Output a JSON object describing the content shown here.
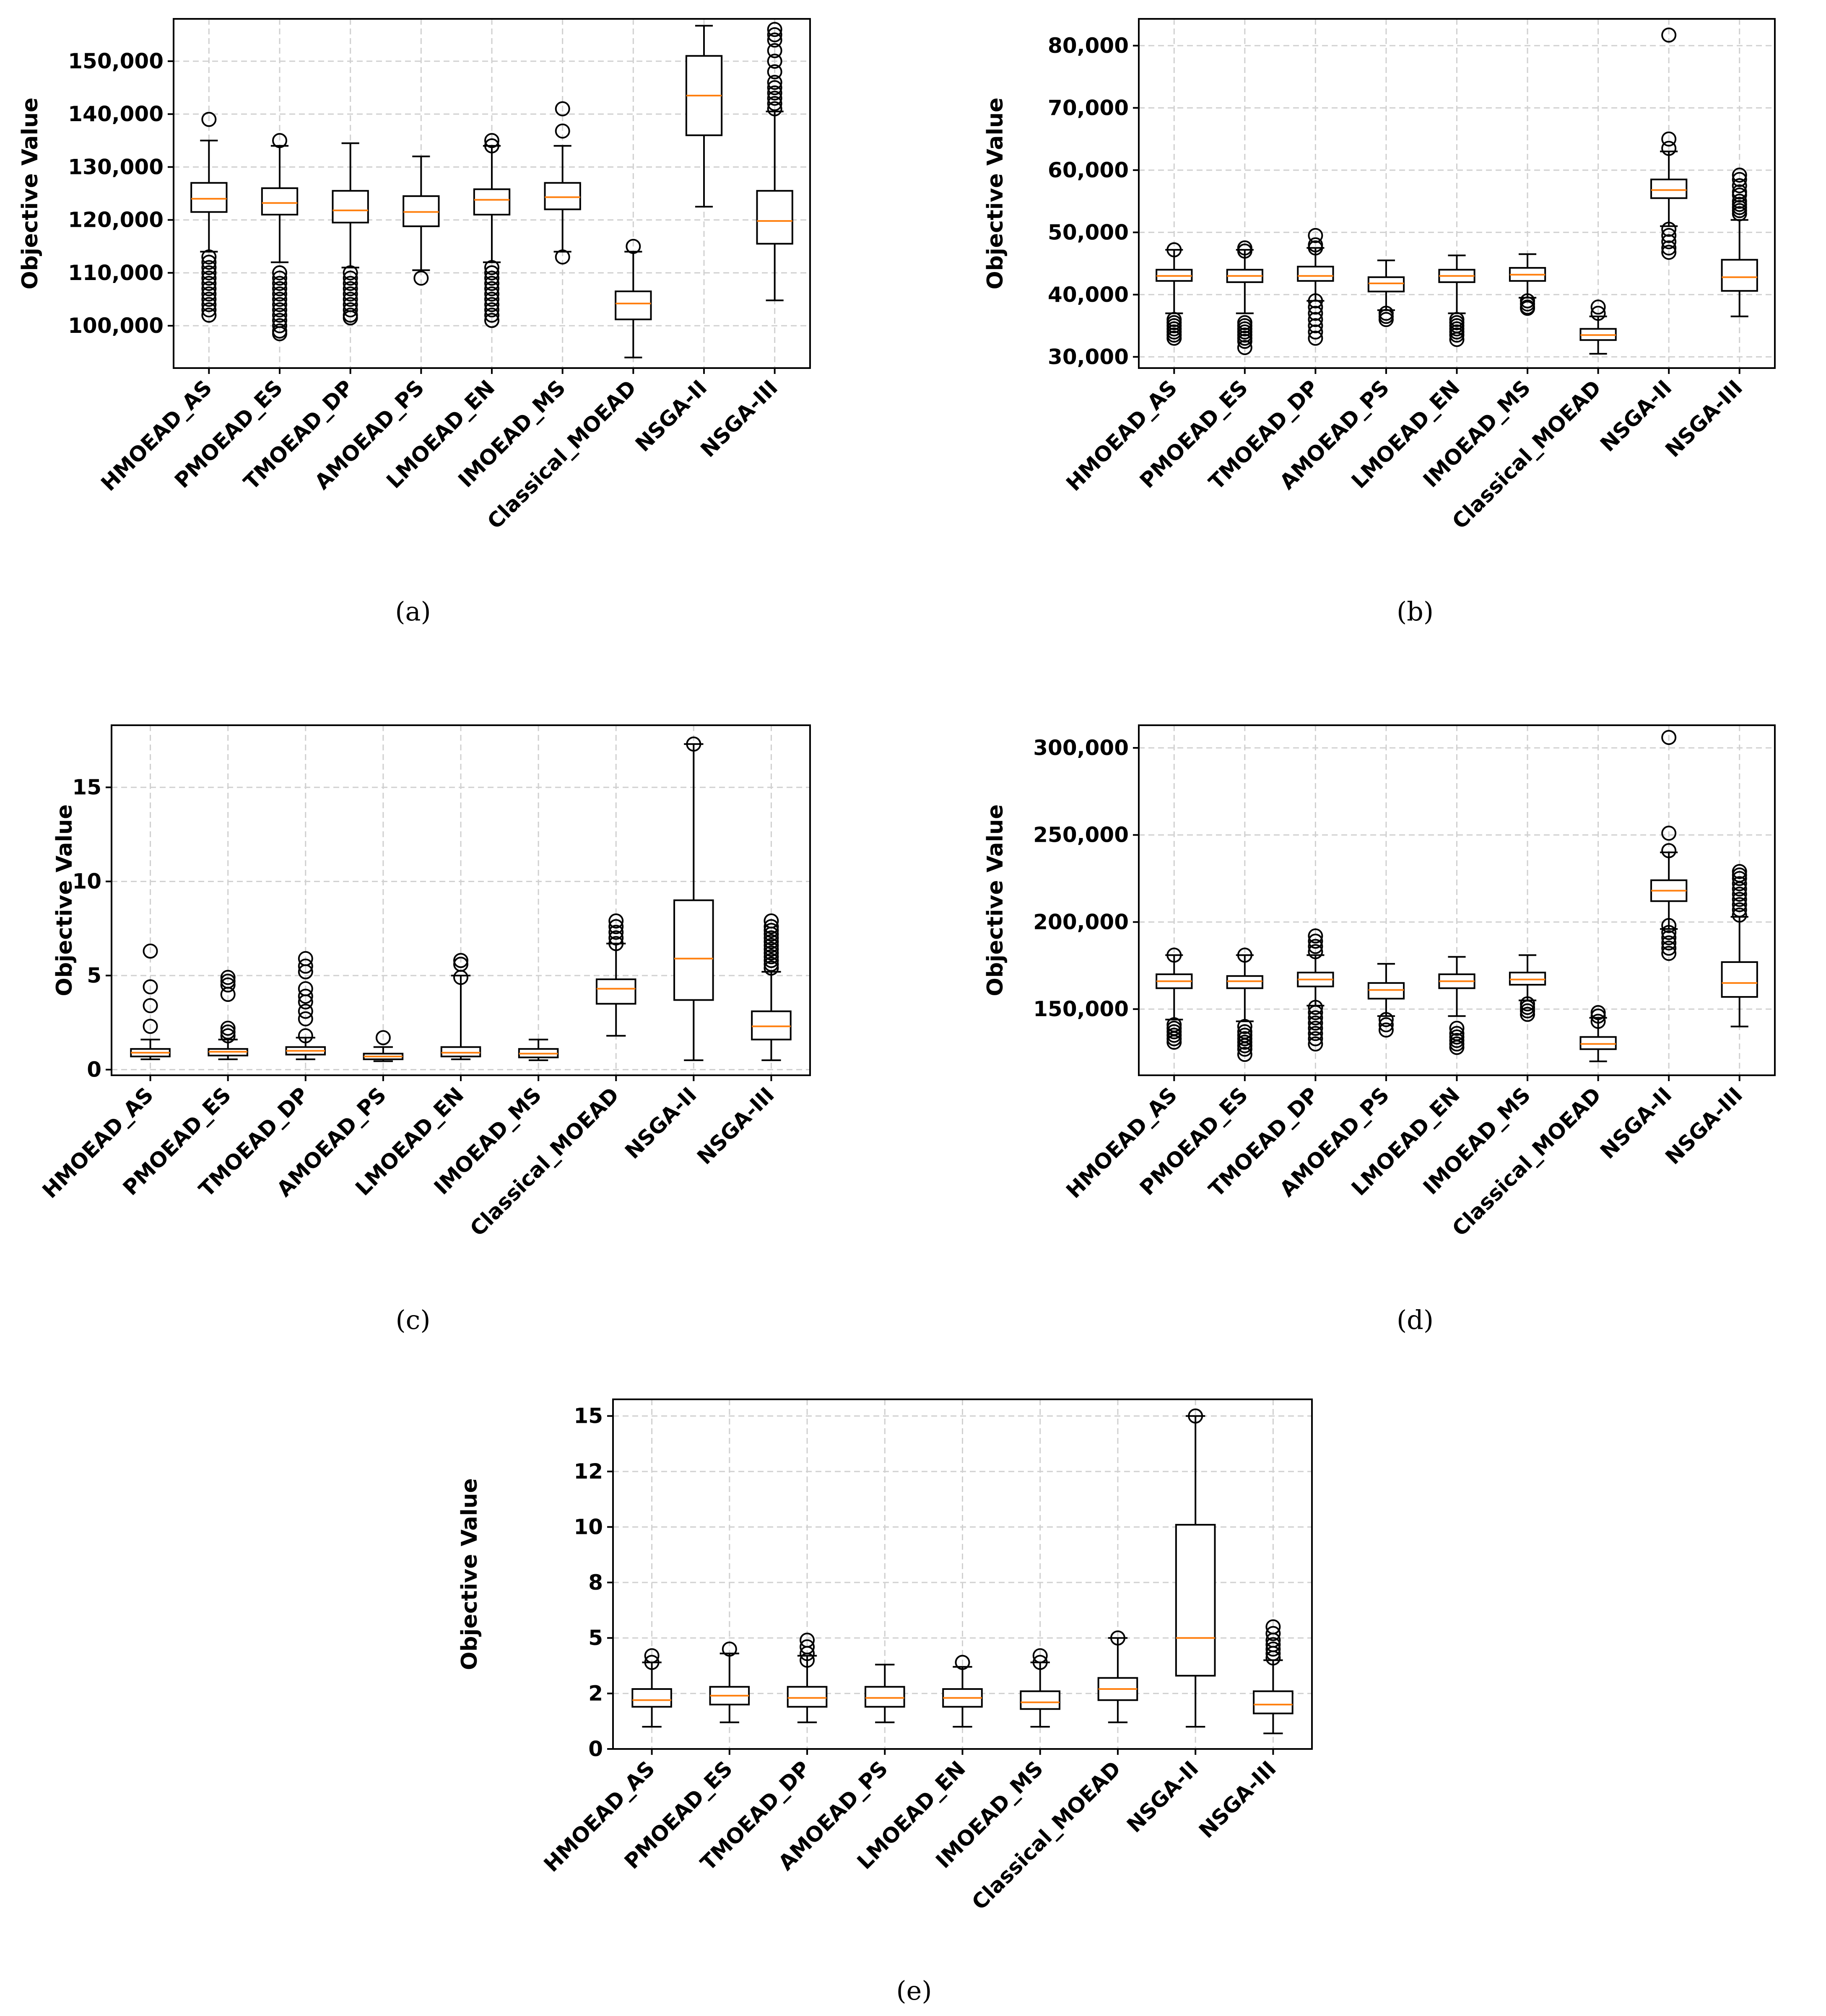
{
  "figure": {
    "panels": [
      {
        "caption": "(a)"
      },
      {
        "caption": "(b)"
      },
      {
        "caption": "(c)"
      },
      {
        "caption": "(d)"
      },
      {
        "caption": "(e)"
      }
    ]
  },
  "chart_data": [
    {
      "type": "box",
      "panel": "(a)",
      "title": "",
      "ylabel": "Objective Value",
      "xlabel": "",
      "grid": true,
      "ylim": [
        92000,
        158000
      ],
      "yticks": [
        100000,
        110000,
        120000,
        130000,
        140000,
        150000
      ],
      "ytick_labels": [
        "100,000",
        "110,000",
        "120,000",
        "130,000",
        "140,000",
        "150,000"
      ],
      "categories": [
        "HMOEAD_AS",
        "PMOEAD_ES",
        "TMOEAD_DP",
        "AMOEAD_PS",
        "LMOEAD_EN",
        "IMOEAD_MS",
        "Classical_MOEAD",
        "NSGA-II",
        "NSGA-III"
      ],
      "boxes": [
        {
          "whislo": 114000,
          "q1": 121500,
          "med": 124000,
          "q3": 127000,
          "whishi": 135000,
          "fliers": [
            139000,
            113000,
            112000,
            111000,
            110000,
            109000,
            108000,
            107000,
            106000,
            105000,
            104000,
            103000,
            102000
          ]
        },
        {
          "whislo": 112000,
          "q1": 121000,
          "med": 123200,
          "q3": 126000,
          "whishi": 134000,
          "fliers": [
            135000,
            110000,
            109000,
            108000,
            107000,
            106000,
            105000,
            104000,
            103000,
            102000,
            101000,
            100000,
            99000,
            98500
          ]
        },
        {
          "whislo": 111000,
          "q1": 119500,
          "med": 121800,
          "q3": 125500,
          "whishi": 134500,
          "fliers": [
            110000,
            109000,
            108000,
            107000,
            106000,
            105000,
            104000,
            103000,
            102000,
            101500
          ]
        },
        {
          "whislo": 110500,
          "q1": 118800,
          "med": 121500,
          "q3": 124500,
          "whishi": 132000,
          "fliers": [
            109000
          ]
        },
        {
          "whislo": 112000,
          "q1": 121000,
          "med": 123800,
          "q3": 125800,
          "whishi": 134000,
          "fliers": [
            135000,
            134000,
            111000,
            110000,
            109000,
            108000,
            107000,
            106000,
            105000,
            104000,
            103000,
            102000,
            101000
          ]
        },
        {
          "whislo": 114000,
          "q1": 122000,
          "med": 124300,
          "q3": 127000,
          "whishi": 134000,
          "fliers": [
            141000,
            136800,
            113000
          ]
        },
        {
          "whislo": 94000,
          "q1": 101200,
          "med": 104200,
          "q3": 106500,
          "whishi": 114000,
          "fliers": [
            115000
          ]
        },
        {
          "whislo": 122500,
          "q1": 136000,
          "med": 143500,
          "q3": 151000,
          "whishi": 156700,
          "fliers": []
        },
        {
          "whislo": 104800,
          "q1": 115500,
          "med": 119800,
          "q3": 125500,
          "whishi": 140500,
          "fliers": [
            156000,
            155000,
            154000,
            152000,
            150000,
            148000,
            146000,
            145000,
            144000,
            143000,
            142000,
            141000
          ]
        }
      ]
    },
    {
      "type": "box",
      "panel": "(b)",
      "title": "",
      "ylabel": "Objective Value",
      "xlabel": "",
      "grid": true,
      "ylim": [
        28200,
        84300
      ],
      "yticks": [
        30000,
        40000,
        50000,
        60000,
        70000,
        80000
      ],
      "ytick_labels": [
        "30,000",
        "40,000",
        "50,000",
        "60,000",
        "70,000",
        "80,000"
      ],
      "categories": [
        "HMOEAD_AS",
        "PMOEAD_ES",
        "TMOEAD_DP",
        "AMOEAD_PS",
        "LMOEAD_EN",
        "IMOEAD_MS",
        "Classical_MOEAD",
        "NSGA-II",
        "NSGA-III"
      ],
      "boxes": [
        {
          "whislo": 37000,
          "q1": 42200,
          "med": 43000,
          "q3": 44000,
          "whishi": 47200,
          "fliers": [
            47200,
            36000,
            35500,
            35000,
            34500,
            34000,
            33500,
            33000
          ]
        },
        {
          "whislo": 37000,
          "q1": 42000,
          "med": 43000,
          "q3": 44000,
          "whishi": 47200,
          "fliers": [
            47500,
            47000,
            35500,
            35000,
            34500,
            34000,
            33500,
            33000,
            32500,
            31500
          ]
        },
        {
          "whislo": 39000,
          "q1": 42200,
          "med": 43000,
          "q3": 44500,
          "whishi": 47500,
          "fliers": [
            49500,
            48000,
            47500,
            39000,
            38000,
            37000,
            36000,
            35000,
            34000,
            33000
          ]
        },
        {
          "whislo": 37500,
          "q1": 40500,
          "med": 41800,
          "q3": 42800,
          "whishi": 45500,
          "fliers": [
            37000,
            36500,
            36000
          ]
        },
        {
          "whislo": 37000,
          "q1": 42000,
          "med": 43000,
          "q3": 44000,
          "whishi": 46300,
          "fliers": [
            36000,
            35500,
            35000,
            34500,
            34000,
            33500,
            32800
          ]
        },
        {
          "whislo": 39500,
          "q1": 42200,
          "med": 43200,
          "q3": 44300,
          "whishi": 46500,
          "fliers": [
            39000,
            38500,
            38000,
            37800
          ]
        },
        {
          "whislo": 30500,
          "q1": 32700,
          "med": 33500,
          "q3": 34500,
          "whishi": 36500,
          "fliers": [
            38000,
            37000
          ]
        },
        {
          "whislo": 51000,
          "q1": 55500,
          "med": 56800,
          "q3": 58500,
          "whishi": 63000,
          "fliers": [
            81700,
            65000,
            63500,
            50500,
            49500,
            48500,
            47500,
            46800
          ]
        },
        {
          "whislo": 36500,
          "q1": 40600,
          "med": 42800,
          "q3": 45600,
          "whishi": 52000,
          "fliers": [
            59200,
            58500,
            57500,
            56500,
            56000,
            55000,
            54500,
            54000,
            53500,
            53000
          ]
        }
      ]
    },
    {
      "type": "box",
      "panel": "(c)",
      "title": "",
      "ylabel": "Objective Value",
      "xlabel": "",
      "grid": true,
      "ylim": [
        -0.3,
        18.3
      ],
      "yticks": [
        0,
        5,
        10,
        15
      ],
      "ytick_labels": [
        "0",
        "5",
        "10",
        "15"
      ],
      "categories": [
        "HMOEAD_AS",
        "PMOEAD_ES",
        "TMOEAD_DP",
        "AMOEAD_PS",
        "LMOEAD_EN",
        "IMOEAD_MS",
        "Classical_MOEAD",
        "NSGA-II",
        "NSGA-III"
      ],
      "boxes": [
        {
          "whislo": 0.55,
          "q1": 0.7,
          "med": 0.9,
          "q3": 1.1,
          "whishi": 1.6,
          "fliers": [
            6.3,
            4.4,
            3.4,
            2.3
          ]
        },
        {
          "whislo": 0.55,
          "q1": 0.75,
          "med": 0.95,
          "q3": 1.1,
          "whishi": 1.6,
          "fliers": [
            4.9,
            4.7,
            4.5,
            4.0,
            2.2,
            2.0,
            1.8
          ]
        },
        {
          "whislo": 0.55,
          "q1": 0.8,
          "med": 1.0,
          "q3": 1.2,
          "whishi": 1.7,
          "fliers": [
            5.9,
            5.5,
            5.2,
            4.3,
            3.9,
            3.6,
            3.1,
            2.7,
            1.8
          ]
        },
        {
          "whislo": 0.45,
          "q1": 0.55,
          "med": 0.7,
          "q3": 0.85,
          "whishi": 1.2,
          "fliers": [
            1.7
          ]
        },
        {
          "whislo": 0.55,
          "q1": 0.7,
          "med": 0.9,
          "q3": 1.2,
          "whishi": 5.0,
          "fliers": [
            5.8,
            5.6,
            4.9
          ]
        },
        {
          "whislo": 0.5,
          "q1": 0.65,
          "med": 0.85,
          "q3": 1.1,
          "whishi": 1.6,
          "fliers": []
        },
        {
          "whislo": 1.8,
          "q1": 3.5,
          "med": 4.3,
          "q3": 4.8,
          "whishi": 6.7,
          "fliers": [
            7.9,
            7.6,
            7.3,
            7.0,
            6.7
          ]
        },
        {
          "whislo": 0.5,
          "q1": 3.7,
          "med": 5.9,
          "q3": 9.0,
          "whishi": 17.3,
          "fliers": [
            17.3
          ]
        },
        {
          "whislo": 0.5,
          "q1": 1.6,
          "med": 2.3,
          "q3": 3.1,
          "whishi": 5.2,
          "fliers": [
            7.9,
            7.6,
            7.4,
            7.2,
            7.0,
            6.8,
            6.6,
            6.4,
            6.2,
            6.0,
            5.8,
            5.6,
            5.4
          ]
        }
      ]
    },
    {
      "type": "box",
      "panel": "(d)",
      "title": "",
      "ylabel": "Objective Value",
      "xlabel": "",
      "grid": true,
      "ylim": [
        112000,
        313000
      ],
      "yticks": [
        150000,
        200000,
        250000,
        300000
      ],
      "ytick_labels": [
        "150,000",
        "200,000",
        "250,000",
        "300,000"
      ],
      "categories": [
        "HMOEAD_AS",
        "PMOEAD_ES",
        "TMOEAD_DP",
        "AMOEAD_PS",
        "LMOEAD_EN",
        "IMOEAD_MS",
        "Classical_MOEAD",
        "NSGA-II",
        "NSGA-III"
      ],
      "boxes": [
        {
          "whislo": 144000,
          "q1": 162000,
          "med": 166000,
          "q3": 170000,
          "whishi": 181000,
          "fliers": [
            181000,
            141000,
            139000,
            137000,
            135000,
            133000,
            131000
          ]
        },
        {
          "whislo": 143000,
          "q1": 162000,
          "med": 166000,
          "q3": 169000,
          "whishi": 181000,
          "fliers": [
            181000,
            140000,
            137000,
            135000,
            133000,
            131000,
            129000,
            127000,
            124000
          ]
        },
        {
          "whislo": 152000,
          "q1": 163000,
          "med": 167000,
          "q3": 171000,
          "whishi": 181000,
          "fliers": [
            192000,
            189000,
            186000,
            183000,
            151000,
            148000,
            145000,
            142000,
            139000,
            136000,
            133000,
            130000
          ]
        },
        {
          "whislo": 146000,
          "q1": 156000,
          "med": 161000,
          "q3": 165000,
          "whishi": 176000,
          "fliers": [
            144000,
            141000,
            138000
          ]
        },
        {
          "whislo": 146000,
          "q1": 162000,
          "med": 166000,
          "q3": 170000,
          "whishi": 180000,
          "fliers": [
            139000,
            136000,
            134000,
            132000,
            130000,
            128000
          ]
        },
        {
          "whislo": 155000,
          "q1": 164000,
          "med": 167000,
          "q3": 171000,
          "whishi": 181000,
          "fliers": [
            153000,
            151000,
            149000,
            147000
          ]
        },
        {
          "whislo": 120000,
          "q1": 127000,
          "med": 130000,
          "q3": 134000,
          "whishi": 145000,
          "fliers": [
            148000,
            146000,
            143000
          ]
        },
        {
          "whislo": 196000,
          "q1": 212000,
          "med": 218000,
          "q3": 224000,
          "whishi": 240000,
          "fliers": [
            306000,
            251000,
            241000,
            198000,
            194000,
            191000,
            188000,
            185000,
            182000
          ]
        },
        {
          "whislo": 140000,
          "q1": 157000,
          "med": 165000,
          "q3": 177000,
          "whishi": 203000,
          "fliers": [
            229000,
            227000,
            225000,
            222000,
            219000,
            216000,
            213000,
            210000,
            207000,
            204000
          ]
        }
      ]
    },
    {
      "type": "box",
      "panel": "(e)",
      "title": "",
      "ylabel": "Objective Value",
      "xlabel": "",
      "grid": true,
      "ylim": [
        0,
        15.75
      ],
      "yticks": [
        0,
        2.5,
        5,
        7.5,
        10,
        12.5,
        15
      ],
      "ytick_labels": [
        "0",
        "2",
        "5",
        "8",
        "10",
        "12",
        "15"
      ],
      "categories": [
        "HMOEAD_AS",
        "PMOEAD_ES",
        "TMOEAD_DP",
        "AMOEAD_PS",
        "LMOEAD_EN",
        "IMOEAD_MS",
        "Classical_MOEAD",
        "NSGA-II",
        "NSGA-III"
      ],
      "boxes": [
        {
          "whislo": 1.0,
          "q1": 1.9,
          "med": 2.2,
          "q3": 2.7,
          "whishi": 3.9,
          "fliers": [
            4.2,
            3.9
          ]
        },
        {
          "whislo": 1.2,
          "q1": 2.0,
          "med": 2.4,
          "q3": 2.8,
          "whishi": 4.3,
          "fliers": [
            4.5
          ]
        },
        {
          "whislo": 1.2,
          "q1": 1.9,
          "med": 2.3,
          "q3": 2.8,
          "whishi": 4.2,
          "fliers": [
            4.9,
            4.6,
            4.3,
            4.0
          ]
        },
        {
          "whislo": 1.2,
          "q1": 1.9,
          "med": 2.3,
          "q3": 2.8,
          "whishi": 3.8,
          "fliers": []
        },
        {
          "whislo": 1.0,
          "q1": 1.9,
          "med": 2.3,
          "q3": 2.7,
          "whishi": 3.7,
          "fliers": [
            3.9
          ]
        },
        {
          "whislo": 1.0,
          "q1": 1.8,
          "med": 2.1,
          "q3": 2.6,
          "whishi": 3.9,
          "fliers": [
            4.2,
            3.9
          ]
        },
        {
          "whislo": 1.2,
          "q1": 2.2,
          "med": 2.7,
          "q3": 3.2,
          "whishi": 5.0,
          "fliers": [
            5.0
          ]
        },
        {
          "whislo": 1.0,
          "q1": 3.3,
          "med": 5.0,
          "q3": 10.1,
          "whishi": 15.0,
          "fliers": [
            15.0
          ]
        },
        {
          "whislo": 0.7,
          "q1": 1.6,
          "med": 2.0,
          "q3": 2.6,
          "whishi": 4.0,
          "fliers": [
            5.5,
            5.2,
            4.9,
            4.7,
            4.5,
            4.3,
            4.1
          ]
        }
      ]
    }
  ],
  "colors": {
    "box": "#000000",
    "median": "#ff7f0e",
    "grid": "#d0d0d0",
    "frame": "#000000"
  }
}
